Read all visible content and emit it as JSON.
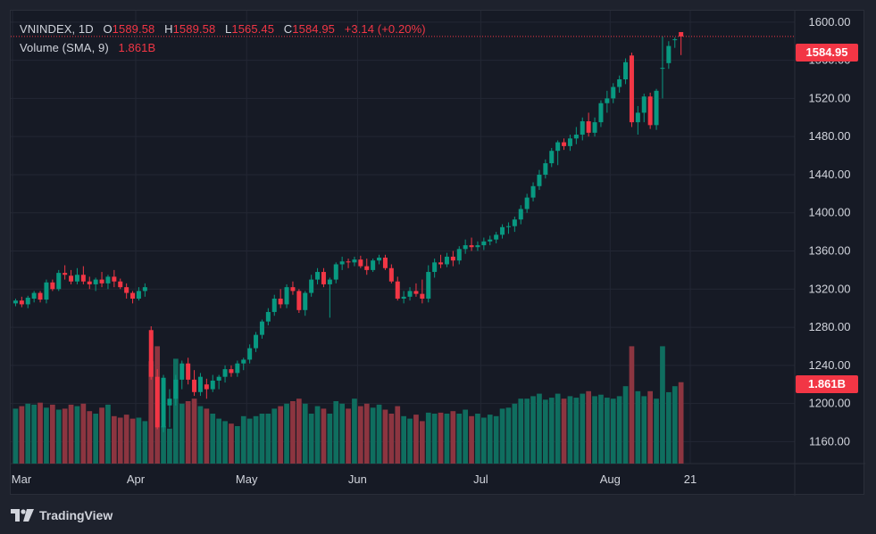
{
  "legend": {
    "symbol": "VNINDEX, 1D",
    "open_label": "O",
    "open_value": "1589.58",
    "high_label": "H",
    "high_value": "1589.58",
    "low_label": "L",
    "low_value": "1565.45",
    "close_label": "C",
    "close_value": "1584.95",
    "change": "+3.14 (+0.20%)",
    "volume_label": "Volume (SMA, 9)",
    "volume_value": "1.861B"
  },
  "badges": {
    "last_price": "1584.95",
    "last_volume": "1.861B"
  },
  "brand": {
    "name": "TradingView",
    "icon": "tradingview-logo-icon"
  },
  "colors": {
    "up": "#089981",
    "down": "#f23645",
    "vol_up": "#0f6e5f",
    "vol_down": "#8c3540",
    "grid": "#232734",
    "text": "#d1d4dc"
  },
  "chart_data": {
    "type": "candlestick",
    "y_ticks": [
      "1160.00",
      "1200.00",
      "1240.00",
      "1280.00",
      "1320.00",
      "1360.00",
      "1400.00",
      "1440.00",
      "1480.00",
      "1520.00",
      "1560.00",
      "1600.00"
    ],
    "ylim": [
      1137,
      1612
    ],
    "x_ticks": [
      {
        "label": "Mar",
        "index": 0
      },
      {
        "label": "Apr",
        "index": 20
      },
      {
        "label": "May",
        "index": 38
      },
      {
        "label": "Jun",
        "index": 56
      },
      {
        "label": "Jul",
        "index": 76
      },
      {
        "label": "Aug",
        "index": 97
      },
      {
        "label": "21",
        "index": 110
      }
    ],
    "candles": [
      [
        1305,
        1310,
        1302,
        1308,
        110
      ],
      [
        1308,
        1312,
        1301,
        1304,
        115
      ],
      [
        1304,
        1313,
        1300,
        1311,
        120
      ],
      [
        1310,
        1318,
        1306,
        1316,
        118
      ],
      [
        1316,
        1318,
        1306,
        1309,
        122
      ],
      [
        1309,
        1330,
        1305,
        1327,
        112
      ],
      [
        1327,
        1330,
        1318,
        1320,
        118
      ],
      [
        1320,
        1340,
        1318,
        1337,
        108
      ],
      [
        1337,
        1345,
        1330,
        1335,
        110
      ],
      [
        1334,
        1340,
        1325,
        1328,
        118
      ],
      [
        1328,
        1342,
        1325,
        1335,
        115
      ],
      [
        1335,
        1344,
        1325,
        1328,
        120
      ],
      [
        1328,
        1333,
        1320,
        1325,
        105
      ],
      [
        1325,
        1332,
        1318,
        1330,
        100
      ],
      [
        1330,
        1338,
        1322,
        1326,
        112
      ],
      [
        1326,
        1335,
        1320,
        1333,
        118
      ],
      [
        1333,
        1340,
        1322,
        1328,
        95
      ],
      [
        1328,
        1331,
        1320,
        1322,
        92
      ],
      [
        1322,
        1326,
        1310,
        1316,
        98
      ],
      [
        1316,
        1318,
        1305,
        1310,
        90
      ],
      [
        1310,
        1322,
        1308,
        1318,
        92
      ],
      [
        1318,
        1326,
        1312,
        1322,
        85
      ],
      [
        1277,
        1281,
        1225,
        1228,
        205
      ],
      [
        1228,
        1236,
        1173,
        1175,
        235
      ],
      [
        1175,
        1230,
        1170,
        1227,
        75
      ],
      [
        1198,
        1215,
        1175,
        1205,
        70
      ],
      [
        1205,
        1230,
        1198,
        1225,
        210
      ],
      [
        1225,
        1245,
        1215,
        1242,
        120
      ],
      [
        1242,
        1248,
        1220,
        1225,
        125
      ],
      [
        1225,
        1235,
        1208,
        1212,
        130
      ],
      [
        1212,
        1232,
        1208,
        1228,
        115
      ],
      [
        1220,
        1226,
        1205,
        1215,
        110
      ],
      [
        1215,
        1230,
        1212,
        1224,
        100
      ],
      [
        1224,
        1230,
        1215,
        1228,
        90
      ],
      [
        1228,
        1240,
        1222,
        1236,
        85
      ],
      [
        1236,
        1240,
        1228,
        1232,
        80
      ],
      [
        1232,
        1245,
        1228,
        1242,
        75
      ],
      [
        1242,
        1248,
        1235,
        1246,
        95
      ],
      [
        1246,
        1262,
        1242,
        1258,
        90
      ],
      [
        1258,
        1275,
        1254,
        1272,
        95
      ],
      [
        1272,
        1288,
        1268,
        1286,
        100
      ],
      [
        1286,
        1300,
        1282,
        1296,
        100
      ],
      [
        1296,
        1314,
        1292,
        1310,
        110
      ],
      [
        1310,
        1320,
        1300,
        1304,
        115
      ],
      [
        1304,
        1325,
        1300,
        1322,
        120
      ],
      [
        1322,
        1328,
        1314,
        1318,
        125
      ],
      [
        1318,
        1320,
        1295,
        1298,
        130
      ],
      [
        1298,
        1318,
        1292,
        1316,
        120
      ],
      [
        1316,
        1335,
        1312,
        1330,
        100
      ],
      [
        1330,
        1342,
        1325,
        1338,
        115
      ],
      [
        1338,
        1342,
        1322,
        1325,
        110
      ],
      [
        1325,
        1332,
        1290,
        1330,
        100
      ],
      [
        1330,
        1348,
        1326,
        1346,
        125
      ],
      [
        1346,
        1354,
        1340,
        1349,
        120
      ],
      [
        1349,
        1352,
        1342,
        1348,
        110
      ],
      [
        1348,
        1354,
        1344,
        1351,
        130
      ],
      [
        1351,
        1355,
        1342,
        1344,
        115
      ],
      [
        1344,
        1352,
        1335,
        1340,
        120
      ],
      [
        1340,
        1352,
        1338,
        1350,
        112
      ],
      [
        1350,
        1356,
        1346,
        1353,
        118
      ],
      [
        1353,
        1356,
        1340,
        1342,
        108
      ],
      [
        1342,
        1346,
        1326,
        1328,
        100
      ],
      [
        1328,
        1333,
        1308,
        1310,
        115
      ],
      [
        1310,
        1318,
        1305,
        1312,
        95
      ],
      [
        1312,
        1322,
        1308,
        1318,
        90
      ],
      [
        1318,
        1326,
        1312,
        1315,
        98
      ],
      [
        1315,
        1330,
        1305,
        1310,
        85
      ],
      [
        1310,
        1345,
        1306,
        1338,
        102
      ],
      [
        1338,
        1352,
        1332,
        1348,
        100
      ],
      [
        1348,
        1356,
        1342,
        1346,
        102
      ],
      [
        1346,
        1358,
        1343,
        1354,
        100
      ],
      [
        1354,
        1360,
        1344,
        1350,
        105
      ],
      [
        1350,
        1365,
        1346,
        1362,
        100
      ],
      [
        1362,
        1372,
        1357,
        1366,
        108
      ],
      [
        1366,
        1374,
        1360,
        1364,
        95
      ],
      [
        1364,
        1370,
        1360,
        1366,
        100
      ],
      [
        1366,
        1374,
        1361,
        1370,
        92
      ],
      [
        1370,
        1376,
        1366,
        1372,
        98
      ],
      [
        1372,
        1380,
        1368,
        1377,
        95
      ],
      [
        1377,
        1388,
        1373,
        1385,
        110
      ],
      [
        1385,
        1390,
        1378,
        1386,
        112
      ],
      [
        1386,
        1396,
        1380,
        1393,
        120
      ],
      [
        1393,
        1408,
        1388,
        1404,
        130
      ],
      [
        1404,
        1420,
        1400,
        1416,
        130
      ],
      [
        1416,
        1432,
        1412,
        1428,
        135
      ],
      [
        1428,
        1445,
        1424,
        1440,
        140
      ],
      [
        1440,
        1456,
        1436,
        1452,
        128
      ],
      [
        1452,
        1468,
        1448,
        1465,
        132
      ],
      [
        1465,
        1476,
        1450,
        1474,
        140
      ],
      [
        1474,
        1478,
        1466,
        1470,
        130
      ],
      [
        1470,
        1482,
        1465,
        1478,
        135
      ],
      [
        1478,
        1490,
        1472,
        1482,
        132
      ],
      [
        1482,
        1500,
        1476,
        1496,
        140
      ],
      [
        1496,
        1505,
        1480,
        1484,
        145
      ],
      [
        1484,
        1500,
        1480,
        1495,
        135
      ],
      [
        1495,
        1518,
        1490,
        1515,
        138
      ],
      [
        1515,
        1528,
        1505,
        1520,
        132
      ],
      [
        1520,
        1536,
        1515,
        1532,
        130
      ],
      [
        1532,
        1544,
        1526,
        1540,
        135
      ],
      [
        1540,
        1562,
        1535,
        1558,
        155
      ],
      [
        1565,
        1568,
        1490,
        1495,
        235
      ],
      [
        1495,
        1512,
        1482,
        1505,
        145
      ],
      [
        1505,
        1525,
        1495,
        1522,
        135
      ],
      [
        1522,
        1526,
        1488,
        1492,
        145
      ],
      [
        1492,
        1530,
        1487,
        1528,
        130
      ],
      [
        1552,
        1585,
        1520,
        1552,
        235
      ],
      [
        1557,
        1580,
        1551,
        1575,
        143
      ],
      [
        1582,
        1584,
        1573,
        1582,
        155
      ],
      [
        1589.58,
        1589.58,
        1565.45,
        1584.95,
        163
      ]
    ]
  }
}
